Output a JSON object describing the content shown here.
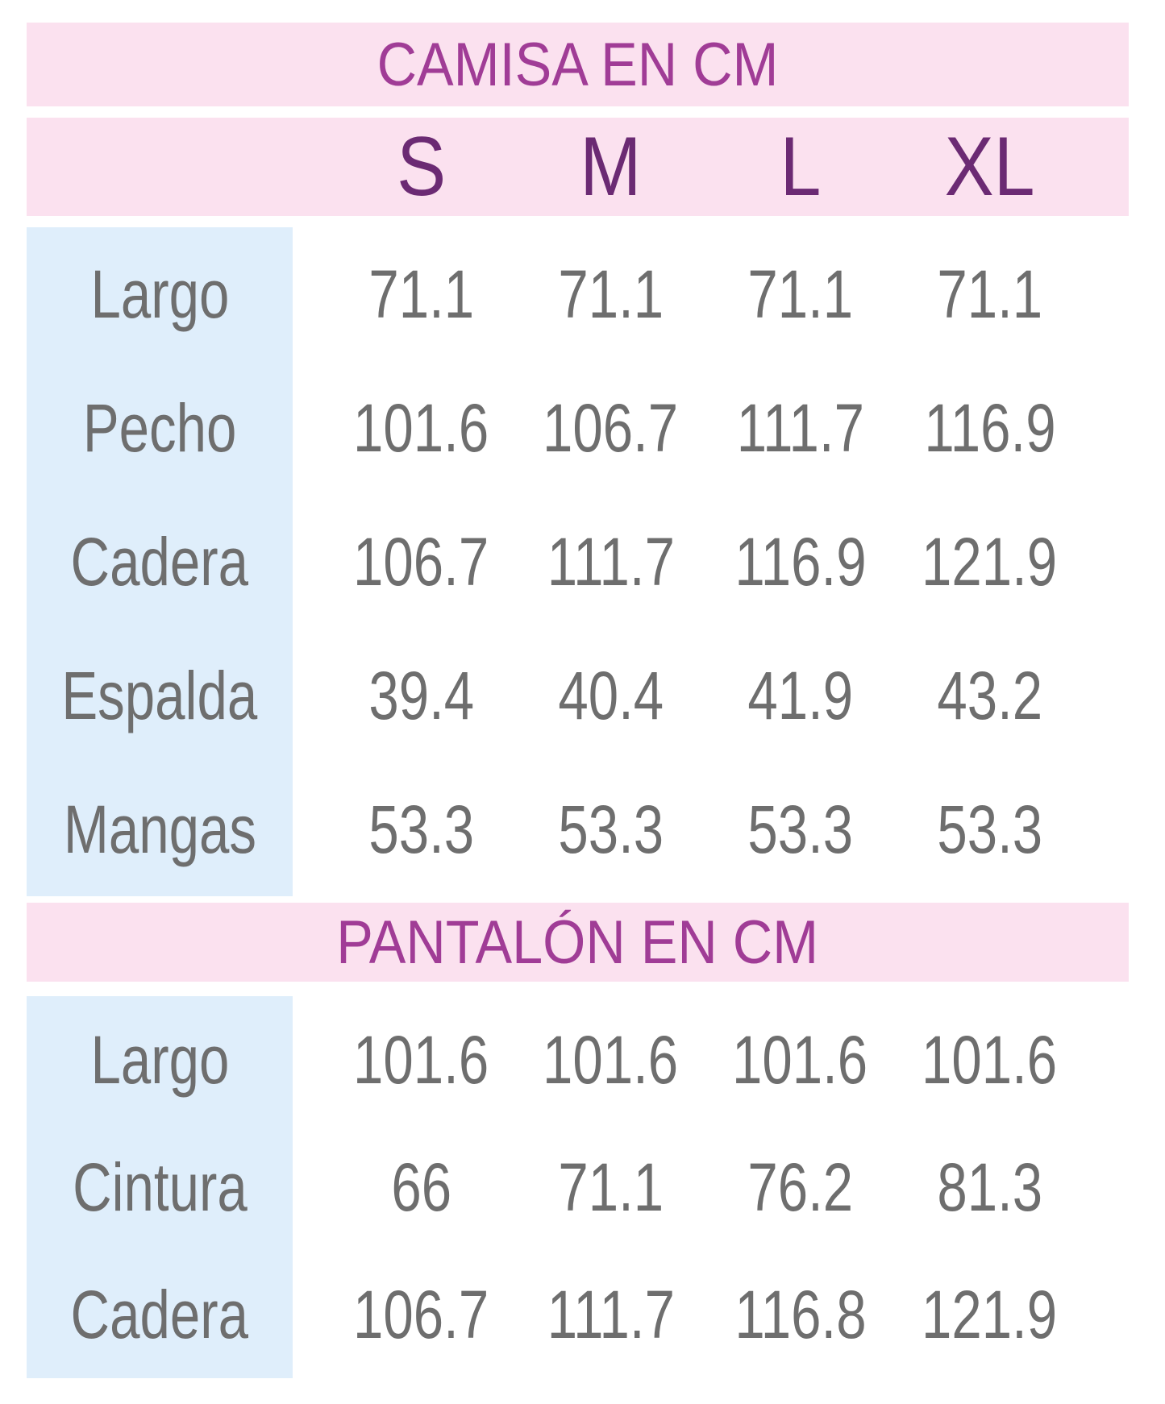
{
  "colors": {
    "header_pink": "#fbe1ef",
    "label_blue": "#dfeefb",
    "title_magenta": "#a03c96",
    "size_purple": "#6b2a73",
    "value_gray": "#6e6e6e",
    "background": "#ffffff"
  },
  "chart_data": [
    {
      "type": "table",
      "title": "CAMISA EN CM",
      "columns": [
        "",
        "S",
        "M",
        "L",
        "XL"
      ],
      "rows": [
        [
          "Largo",
          "71.1",
          "71.1",
          "71.1",
          "71.1"
        ],
        [
          "Pecho",
          "101.6",
          "106.7",
          "111.7",
          "116.9"
        ],
        [
          "Cadera",
          "106.7",
          "111.7",
          "116.9",
          "121.9"
        ],
        [
          "Espalda",
          "39.4",
          "40.4",
          "41.9",
          "43.2"
        ],
        [
          "Mangas",
          "53.3",
          "53.3",
          "53.3",
          "53.3"
        ]
      ]
    },
    {
      "type": "table",
      "title": "PANTALÓN EN CM",
      "columns": [
        "",
        "S",
        "M",
        "L",
        "XL"
      ],
      "rows": [
        [
          "Largo",
          "101.6",
          "101.6",
          "101.6",
          "101.6"
        ],
        [
          "Cintura",
          "66",
          "71.1",
          "76.2",
          "81.3"
        ],
        [
          "Cadera",
          "106.7",
          "111.7",
          "116.8",
          "121.9"
        ]
      ]
    }
  ]
}
